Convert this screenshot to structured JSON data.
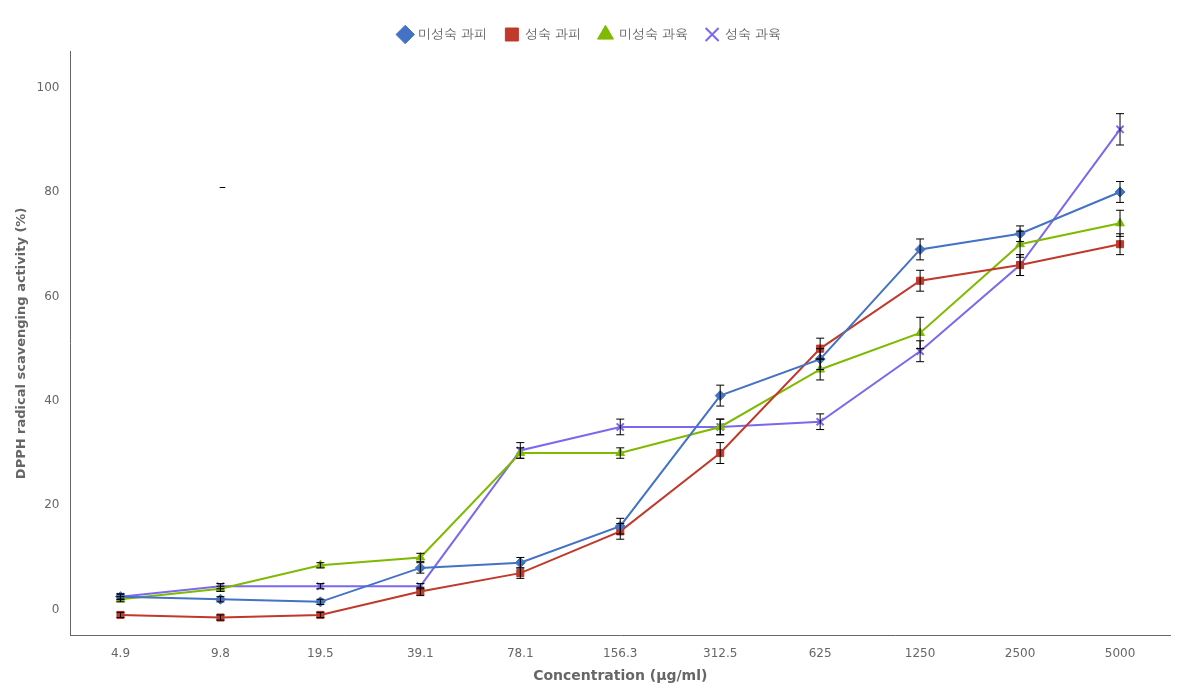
{
  "chart_data": {
    "type": "line",
    "categories": [
      "4.9",
      "9.8",
      "19.5",
      "39.1",
      "78.1",
      "156.3",
      "312.5",
      "625",
      "1250",
      "2500",
      "5000"
    ],
    "series": [
      {
        "name": "미성숙 과피",
        "color": "#4472c4",
        "marker": "diamond",
        "values": [
          2.5,
          2.0,
          1.5,
          8.0,
          9.0,
          16.0,
          41.0,
          48.0,
          69.0,
          72.0,
          80.0
        ],
        "errors": [
          0.5,
          0.5,
          0.5,
          1.0,
          1.0,
          1.5,
          2.0,
          2.0,
          2.0,
          1.5,
          2.0
        ]
      },
      {
        "name": "성숙 과피",
        "color": "#c0392b",
        "marker": "square",
        "values": [
          -1.0,
          -1.5,
          -1.0,
          3.5,
          7.0,
          15.0,
          30.0,
          50.0,
          63.0,
          66.0,
          70.0
        ],
        "errors": [
          0.5,
          0.5,
          0.5,
          0.8,
          1.0,
          1.5,
          2.0,
          2.0,
          2.0,
          2.0,
          2.0
        ]
      },
      {
        "name": "미성숙 과육",
        "color": "#7fba00",
        "marker": "triangle",
        "values": [
          2.0,
          4.0,
          8.5,
          10.0,
          30.0,
          30.0,
          35.0,
          46.0,
          53.0,
          70.0,
          74.0
        ],
        "errors": [
          0.5,
          0.5,
          0.5,
          0.8,
          1.0,
          1.0,
          1.5,
          2.0,
          3.0,
          2.5,
          2.5
        ]
      },
      {
        "name": "성숙 과육",
        "color": "#7b68ee",
        "marker": "x",
        "values": [
          2.5,
          4.5,
          4.5,
          4.5,
          30.5,
          35.0,
          35.0,
          36.0,
          49.5,
          66.0,
          92.0
        ],
        "errors": [
          0.5,
          0.5,
          0.5,
          0.5,
          1.5,
          1.5,
          1.5,
          1.5,
          2.0,
          2.0,
          3.0
        ]
      }
    ],
    "xlabel": "Concentration (μg/ml)",
    "ylabel": "DPPH radical scavenging activity (%)",
    "annotations": [
      "–"
    ],
    "ylim": [
      -5,
      107
    ],
    "yticks": [
      0,
      20,
      40,
      60,
      80,
      100
    ],
    "grid": false,
    "legend": "top"
  }
}
